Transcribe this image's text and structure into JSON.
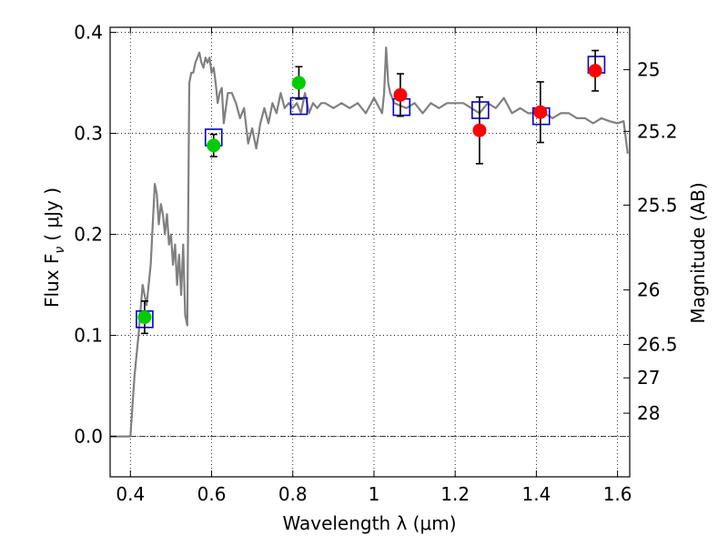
{
  "chart_data": {
    "type": "scatter",
    "xlabel": "Wavelength  λ (μm)",
    "ylabel": "Flux  F",
    "ylabel_sub": "ν",
    "ylabel_unit": "( μJy )",
    "y2label": "Magnitude (AB)",
    "xlim": [
      0.35,
      1.63
    ],
    "ylim": [
      -0.04,
      0.405
    ],
    "xticks": [
      0.4,
      0.6,
      0.8,
      1.0,
      1.2,
      1.4,
      1.6
    ],
    "xtick_labels": [
      "0.4",
      "0.6",
      "0.8",
      "1",
      "1.2",
      "1.4",
      "1.6"
    ],
    "yticks": [
      0.0,
      0.1,
      0.2,
      0.3,
      0.4
    ],
    "ytick_labels": [
      "0.0",
      "0.1",
      "0.2",
      "0.3",
      "0.4"
    ],
    "y2ticks": [
      {
        "label": "25",
        "flux": 0.363
      },
      {
        "label": "25.2",
        "flux": 0.302
      },
      {
        "label": "25.5",
        "flux": 0.229
      },
      {
        "label": "26",
        "flux": 0.145
      },
      {
        "label": "26.5",
        "flux": 0.091
      },
      {
        "label": "27",
        "flux": 0.058
      },
      {
        "label": "28",
        "flux": 0.023
      }
    ],
    "grid": true,
    "colors": {
      "model": "#808080",
      "green": "#00cc00",
      "red": "#ff0000",
      "box": "#0000cc",
      "errorbar": "#000000"
    },
    "model_sed": {
      "x": [
        0.35,
        0.4,
        0.41,
        0.42,
        0.43,
        0.44,
        0.45,
        0.46,
        0.465,
        0.47,
        0.475,
        0.48,
        0.485,
        0.49,
        0.495,
        0.5,
        0.505,
        0.51,
        0.515,
        0.52,
        0.525,
        0.53,
        0.535,
        0.54,
        0.545,
        0.55,
        0.555,
        0.56,
        0.57,
        0.575,
        0.58,
        0.585,
        0.59,
        0.595,
        0.6,
        0.605,
        0.61,
        0.615,
        0.62,
        0.625,
        0.63,
        0.64,
        0.65,
        0.66,
        0.67,
        0.68,
        0.69,
        0.7,
        0.71,
        0.72,
        0.73,
        0.74,
        0.75,
        0.76,
        0.77,
        0.78,
        0.79,
        0.8,
        0.81,
        0.82,
        0.83,
        0.84,
        0.85,
        0.86,
        0.87,
        0.88,
        0.9,
        0.92,
        0.94,
        0.96,
        0.98,
        1.0,
        1.02,
        1.025,
        1.03,
        1.035,
        1.04,
        1.05,
        1.08,
        1.1,
        1.12,
        1.14,
        1.16,
        1.18,
        1.2,
        1.22,
        1.24,
        1.26,
        1.28,
        1.3,
        1.32,
        1.34,
        1.36,
        1.38,
        1.4,
        1.42,
        1.44,
        1.46,
        1.48,
        1.5,
        1.52,
        1.54,
        1.56,
        1.58,
        1.6,
        1.615,
        1.625
      ],
      "y": [
        0.0,
        0.0,
        0.06,
        0.1,
        0.15,
        0.13,
        0.17,
        0.25,
        0.24,
        0.21,
        0.23,
        0.22,
        0.2,
        0.22,
        0.19,
        0.2,
        0.17,
        0.19,
        0.15,
        0.18,
        0.14,
        0.19,
        0.12,
        0.11,
        0.35,
        0.36,
        0.36,
        0.37,
        0.38,
        0.37,
        0.365,
        0.375,
        0.37,
        0.375,
        0.36,
        0.365,
        0.35,
        0.33,
        0.34,
        0.345,
        0.31,
        0.34,
        0.34,
        0.33,
        0.315,
        0.325,
        0.29,
        0.305,
        0.285,
        0.31,
        0.325,
        0.31,
        0.33,
        0.32,
        0.34,
        0.325,
        0.33,
        0.325,
        0.33,
        0.32,
        0.34,
        0.32,
        0.33,
        0.325,
        0.33,
        0.33,
        0.325,
        0.33,
        0.325,
        0.33,
        0.32,
        0.335,
        0.32,
        0.34,
        0.385,
        0.35,
        0.34,
        0.33,
        0.325,
        0.33,
        0.32,
        0.33,
        0.325,
        0.33,
        0.33,
        0.33,
        0.325,
        0.32,
        0.33,
        0.325,
        0.335,
        0.32,
        0.325,
        0.32,
        0.32,
        0.32,
        0.315,
        0.32,
        0.32,
        0.315,
        0.315,
        0.31,
        0.315,
        0.312,
        0.31,
        0.312,
        0.28
      ]
    },
    "observed_green": [
      {
        "x": 0.435,
        "y": 0.118,
        "yerr": 0.016
      },
      {
        "x": 0.605,
        "y": 0.288,
        "yerr": 0.011
      },
      {
        "x": 0.815,
        "y": 0.35,
        "yerr": 0.016
      }
    ],
    "observed_red": [
      {
        "x": 1.065,
        "y": 0.338,
        "yerr": 0.021
      },
      {
        "x": 1.26,
        "y": 0.303,
        "yerr": 0.033
      },
      {
        "x": 1.41,
        "y": 0.321,
        "yerr": 0.03
      },
      {
        "x": 1.545,
        "y": 0.362,
        "yerr": 0.02
      }
    ],
    "model_boxes": [
      {
        "x": 0.435,
        "y": 0.116
      },
      {
        "x": 0.605,
        "y": 0.296
      },
      {
        "x": 0.815,
        "y": 0.327
      },
      {
        "x": 1.068,
        "y": 0.326
      },
      {
        "x": 1.262,
        "y": 0.323
      },
      {
        "x": 1.412,
        "y": 0.317
      },
      {
        "x": 1.548,
        "y": 0.368
      }
    ]
  }
}
